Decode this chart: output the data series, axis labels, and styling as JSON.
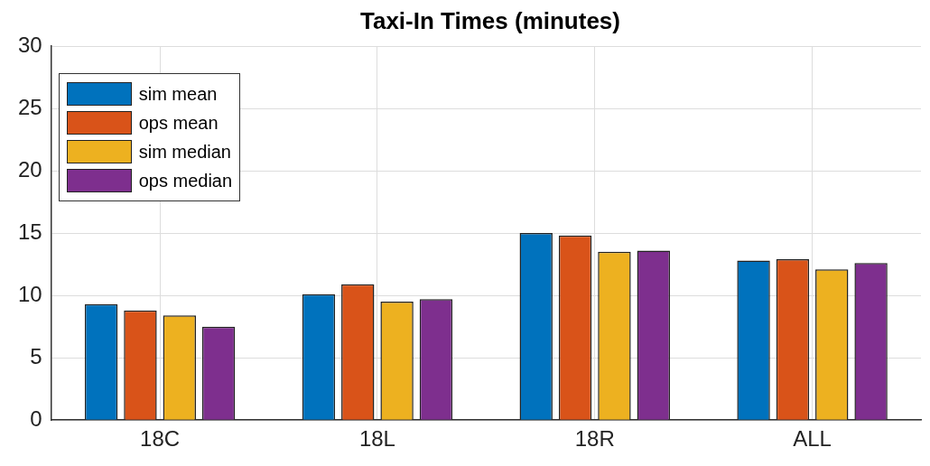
{
  "chart_data": {
    "type": "bar",
    "title": "Taxi-In Times (minutes)",
    "categories": [
      "18C",
      "18L",
      "18R",
      "ALL"
    ],
    "series": [
      {
        "name": "sim mean",
        "color": "#0072bd",
        "values": [
          9.3,
          10.1,
          15.0,
          12.8
        ]
      },
      {
        "name": "ops mean",
        "color": "#d95319",
        "values": [
          8.8,
          10.9,
          14.8,
          12.9
        ]
      },
      {
        "name": "sim median",
        "color": "#edb120",
        "values": [
          8.4,
          9.5,
          13.5,
          12.1
        ]
      },
      {
        "name": "ops median",
        "color": "#7e2f8e",
        "values": [
          7.5,
          9.7,
          13.6,
          12.6
        ]
      }
    ],
    "ylim": [
      0,
      30
    ],
    "yticks": [
      0,
      5,
      10,
      15,
      20,
      25,
      30
    ],
    "grid": true,
    "legend": "top left"
  }
}
